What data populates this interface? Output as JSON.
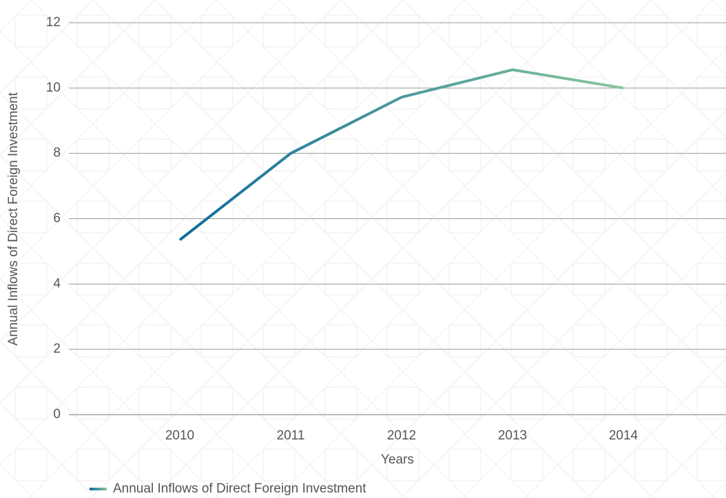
{
  "chart_data": {
    "type": "line",
    "categories": [
      "2010",
      "2011",
      "2012",
      "2013",
      "2014"
    ],
    "series": [
      {
        "name": "Annual Inflows of Direct Foreign Investment",
        "gradient": [
          "#0e6b9d",
          "#8ac79c"
        ],
        "values": [
          5.35,
          8.0,
          9.72,
          10.56,
          10.0
        ]
      }
    ],
    "xlabel": "Years",
    "ylabel": "Annual Inflows of Direct Foreign Investment",
    "ylim": [
      0,
      12
    ],
    "yticks": [
      0,
      2,
      4,
      6,
      8,
      10,
      12
    ],
    "grid": true
  }
}
